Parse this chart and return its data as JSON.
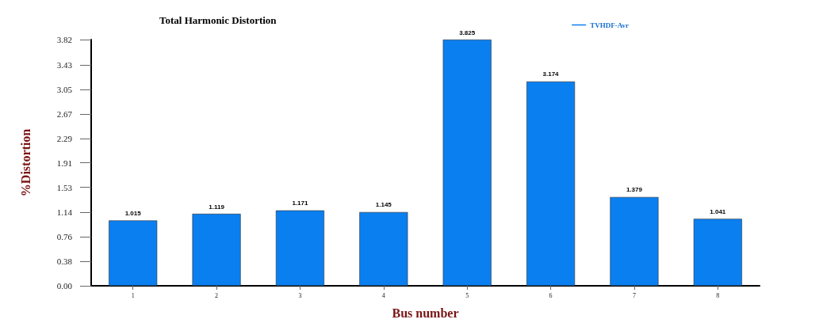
{
  "chart_data": {
    "type": "bar",
    "title": "Total Harmonic Distortion",
    "xlabel": "Bus number",
    "ylabel": "%Distortion",
    "categories": [
      "1",
      "2",
      "3",
      "4",
      "5",
      "6",
      "7",
      "8"
    ],
    "series": [
      {
        "name": "TVHDF-Avr",
        "color": "#0a7ff0",
        "values": [
          1.015,
          1.119,
          1.171,
          1.145,
          3.825,
          3.174,
          1.379,
          1.041
        ]
      }
    ],
    "ylim": [
      0,
      3.825
    ],
    "yticks": [
      {
        "value": 0,
        "label": "0.00"
      },
      0.38,
      0.76,
      1.14,
      1.53,
      1.91,
      2.29,
      2.67,
      3.05,
      3.43,
      3.82
    ],
    "data_labels": true,
    "legend": "top right",
    "grid": false
  }
}
